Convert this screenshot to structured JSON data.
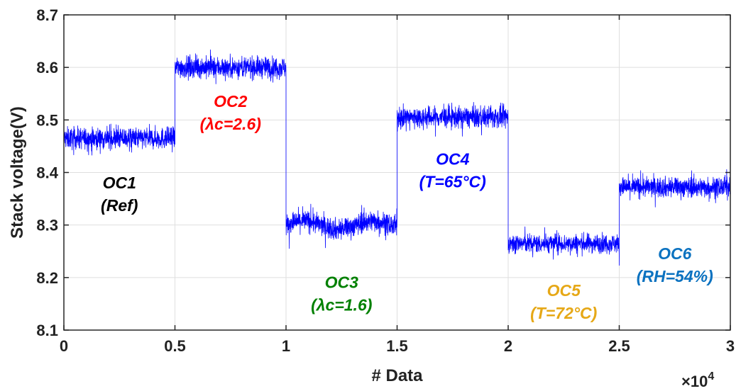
{
  "chart_data": {
    "type": "line",
    "title": "",
    "xlabel": "# Data",
    "ylabel": "Stack voltage(V)",
    "x_multiplier_base": "×10",
    "x_multiplier_exp": "4",
    "xlim": [
      0,
      3
    ],
    "ylim": [
      8.1,
      8.7
    ],
    "x_ticks": [
      0,
      0.5,
      1,
      1.5,
      2,
      2.5,
      3
    ],
    "y_ticks": [
      8.1,
      8.2,
      8.3,
      8.4,
      8.5,
      8.6,
      8.7
    ],
    "x_tick_labels": [
      "0",
      "0.5",
      "1",
      "1.5",
      "2",
      "2.5",
      "3"
    ],
    "y_tick_labels": [
      "8.1",
      "8.2",
      "8.3",
      "8.4",
      "8.5",
      "8.6",
      "8.7"
    ],
    "grid": true,
    "line_color": "#0000ff",
    "series": [
      {
        "segments": [
          {
            "x_start": 0,
            "x_end": 0.5,
            "mean": 8.465,
            "spread": 0.018
          },
          {
            "x_start": 0.5,
            "x_end": 1.0,
            "mean": 8.6,
            "spread": 0.018
          },
          {
            "x_start": 1.0,
            "x_end": 1.5,
            "mean": 8.3,
            "spread": 0.018
          },
          {
            "x_start": 1.5,
            "x_end": 2.0,
            "mean": 8.505,
            "spread": 0.018
          },
          {
            "x_start": 2.0,
            "x_end": 2.5,
            "mean": 8.265,
            "spread": 0.016
          },
          {
            "x_start": 2.5,
            "x_end": 3.0,
            "mean": 8.372,
            "spread": 0.017
          }
        ]
      }
    ],
    "annotations": [
      {
        "line1": "OC1",
        "line2": "(Ref)",
        "color": "#000000",
        "x": 0.25,
        "y": 8.37
      },
      {
        "line1": "OC2",
        "line2": "(λc=2.6)",
        "color": "#ff0000",
        "x": 0.75,
        "y": 8.525
      },
      {
        "line1": "OC3",
        "line2": "(λc=1.6)",
        "color": "#008000",
        "x": 1.25,
        "y": 8.18
      },
      {
        "line1": "OC4",
        "line2": "(T=65°C)",
        "color": "#0000ff",
        "x": 1.75,
        "y": 8.415
      },
      {
        "line1": "OC5",
        "line2": "(T=72°C)",
        "color": "#e6a817",
        "x": 2.25,
        "y": 8.165
      },
      {
        "line1": "OC6",
        "line2": "(RH=54%)",
        "color": "#0b72c0",
        "x": 2.75,
        "y": 8.235
      }
    ]
  }
}
